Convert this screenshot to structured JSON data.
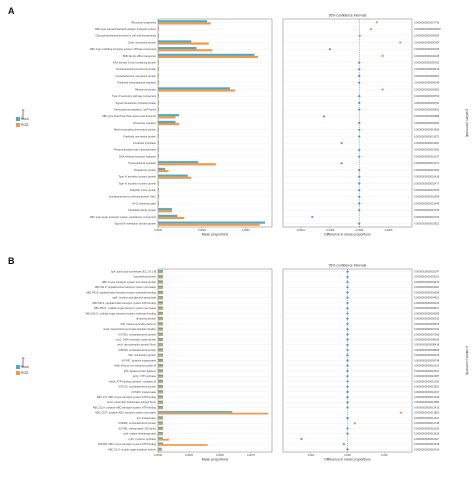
{
  "colors": {
    "Stool": "#4bacc6",
    "RGS": "#f79646",
    "grid": "#e6e6e6",
    "frame": "#555555",
    "dash": "#555555"
  },
  "chart_data": [
    {
      "panel": "A",
      "type": "bar",
      "legend": {
        "title": "Group",
        "items": [
          "Stool",
          "RGS"
        ],
        "placement": "left"
      },
      "categories": [
        "Ribosome biogenesis",
        "ABC-type polysaccharide/O-antigen transport system",
        "Glycosyltransferase involved in cell wall biosynthesis",
        "Outer membrane protein",
        "ABC-type multidrug transport system, ATPase component",
        "RND family efflux transporter",
        "PAS domain S-box-containing protein",
        "Uncharacterized conserved protein",
        "Uncharacterized membrane protein",
        "Predicted transcriptional regulator",
        "Ribosomal protein",
        "Type IV secretory pathway component",
        "Signal transduction histidine kinase",
        "Transcriptional regulator, LysR family",
        "ABC-type branched-chain amino acid transport",
        "Response regulator",
        "Methyl-accepting chemotaxis protein",
        "Predicted membrane protein",
        "Predicted hydrolase",
        "Phosphoenolpyruvate carboxykinase",
        "DNA-binding response regulator",
        "Transcriptional regulator",
        "Periplasmic protein",
        "Type VI secretion system protein",
        "Type IV secretion system protein",
        "Flagellar motor protein",
        "Uncharacterized conserved protein YhbC",
        "Fe-S oxidoreductase",
        "Peptidase family protein",
        "ABC-type sugar transport system, periplasmic component",
        "Sigma-54 interaction domain protein"
      ],
      "series": [
        {
          "name": "Stool",
          "values": [
            0.0028,
            5e-05,
            5e-05,
            0.0019,
            0.0022,
            0.0055,
            5e-05,
            5e-05,
            5e-05,
            5e-05,
            0.0041,
            5e-05,
            5e-05,
            5e-05,
            0.0012,
            0.001,
            5e-05,
            5e-05,
            5e-05,
            5e-05,
            5e-05,
            0.0023,
            0.0004,
            0.0017,
            5e-05,
            5e-05,
            5e-05,
            5e-05,
            0.0008,
            0.0011,
            0.0061
          ]
        },
        {
          "name": "RGS",
          "values": [
            0.003,
            5e-05,
            5e-05,
            0.0029,
            0.0031,
            0.0057,
            5e-05,
            5e-05,
            5e-05,
            5e-05,
            0.0044,
            5e-05,
            5e-05,
            5e-05,
            0.001,
            0.0012,
            5e-05,
            5e-05,
            5e-05,
            5e-05,
            5e-05,
            0.0033,
            0.0006,
            0.0019,
            5e-05,
            5e-05,
            5e-05,
            5e-05,
            0.0008,
            0.0015,
            0.0058
          ]
        }
      ],
      "xlabel": "Mean proportions",
      "xticks": [
        "0.0000",
        "0.0025",
        "0.0050"
      ],
      "xlim": [
        0,
        0.0065
      ],
      "ci": {
        "title": "95% confidence intervals",
        "xlabel": "Difference in mean proportions",
        "xticks": [
          "-0.0010",
          "-0.0005",
          "0.0000",
          "0.0005"
        ],
        "xlim": [
          -0.0013,
          0.0009
        ],
        "diffs": [
          0.0003,
          0.0002,
          1e-05,
          0.0007,
          -0.0005,
          0.0004,
          0.0,
          0.0,
          0.0,
          0.0,
          0.0004,
          0.0,
          0.0,
          0.0,
          -0.0006,
          0.0,
          0.0,
          0.0,
          -0.0003,
          0.0,
          0.0,
          -0.0003,
          0.0,
          0.0,
          0.0,
          0.0,
          0.0,
          0.0,
          0.0,
          -0.0008,
          0.0
        ],
        "colors": [
          "RGS",
          "RGS",
          "RGS",
          "RGS",
          "Stool",
          "RGS",
          "Stool",
          "Stool",
          "Stool",
          "Stool",
          "RGS",
          "Stool",
          "Stool",
          "Stool",
          "Stool",
          "Stool",
          "Stool",
          "Stool",
          "Stool",
          "Stool",
          "Stool",
          "Stool",
          "Stool",
          "Stool",
          "Stool",
          "Stool",
          "Stool",
          "Stool",
          "Stool",
          "Stool",
          "Stool"
        ]
      },
      "pvalues": [
        "0.0000000000007742",
        "0.00000000000000000",
        "0.0000000000000003",
        "0.0000000000000064",
        "0.0000000000000186",
        "0.0000000000000225",
        "0.0000000000000360",
        "0.0000000000000432",
        "0.0000000000000501",
        "0.0000000000000549",
        "0.0000000000000662",
        "0.0000000000000703",
        "0.0000000000000781",
        "0.0000000000000832",
        "0.0000000000000888",
        "0.0000000000000932",
        "0.0000000000001006",
        "0.0000000000001072",
        "0.0000000000001118",
        "0.0000000000001169",
        "0.0000000000001247",
        "0.0000000000001317",
        "0.0000000000001362",
        "0.0000000000001418",
        "0.0000000000001477",
        "0.0000000000001535",
        "0.0000000000001594",
        "0.0000000000001648",
        "0.0000000000001705",
        "0.0000000000001764",
        "0.0000000000001822"
      ],
      "pvalue_title": "p-values (corrected)"
    },
    {
      "panel": "B",
      "type": "bar",
      "legend": {
        "title": "Group",
        "items": [
          "Stool",
          "RGS"
        ],
        "placement": "left"
      },
      "categories": [
        "lipA; lipoic acid synthetase [EC:2.8.1.8]",
        "hypothetical protein",
        "ABC-2 type transport system permease protein",
        "ABC.PE.P; peptide/nickel transport system permease",
        "ABC.PE.A; peptide/nickel transport system substrate-binding",
        "tagF; teichoic acid glycerol-phosphate",
        "ABC.PE.S; peptide/nickel transport system ATP-binding",
        "ABC.MS.P; multiple sugar transport system permease",
        "ABC.MS.S; multiple sugar transport system substrate-binding",
        "ribosomal protein",
        "rbfA; ribosome-binding factor A",
        "nusA; transcription termination/antitermination",
        "K07090; uncharacterized protein",
        "mutL; DNA mismatch repair protein",
        "recA; recombination protein RecA",
        "K06915; uncharacterized protein",
        "ftsZ; cell division protein",
        "K07497; putative transposase",
        "feoB; ferrous iron transport protein B",
        "lplA; lipoate-protein ligase A",
        "pyrG; CTP synthase",
        "msbA; ATP-binding cassette, subfamily B",
        "K07133; uncharacterized protein",
        "K07484; transposase",
        "ABC-2.P; ABC-2 type transport system ATP-binding",
        "secA; preprotein translocase subunit SecA",
        "ABC.CD.A; putative ABC transport system ATP-binding",
        "ABC.CD.P; putative ABC transport system permease",
        "tnp; transposase",
        "K09384; uncharacterized protein",
        "K07481; transposase, IS5 family",
        "mdh; malate dehydrogenase",
        "cysK; cysteine synthase",
        "K01990; ABC-2 type transport system ATP-binding",
        "ABC.SS.S; simple sugar transport system"
      ],
      "series": [
        {
          "name": "Stool",
          "values": [
            0.0004,
            0.0004,
            0.0004,
            0.0004,
            0.0004,
            0.0004,
            0.0004,
            0.0004,
            0.0004,
            0.0004,
            0.0004,
            0.0004,
            0.0004,
            0.0004,
            0.0004,
            0.0004,
            0.0004,
            0.0004,
            0.0004,
            0.0004,
            0.0004,
            0.0004,
            0.0004,
            0.0004,
            0.0004,
            0.0004,
            0.0004,
            0.006,
            0.0004,
            0.0004,
            0.0004,
            0.0004,
            0.0004,
            0.0004,
            0.0003
          ]
        },
        {
          "name": "RGS",
          "values": [
            0.0004,
            0.0004,
            0.0004,
            0.0004,
            0.0004,
            0.0004,
            0.0004,
            0.0004,
            0.0004,
            0.0004,
            0.0004,
            0.0004,
            0.0004,
            0.0004,
            0.0004,
            0.0004,
            0.0004,
            0.0004,
            0.0004,
            0.0004,
            0.0004,
            0.0004,
            0.0004,
            0.0004,
            0.0004,
            0.0004,
            0.0004,
            0.0089,
            0.0004,
            0.0004,
            0.0004,
            0.0004,
            0.0009,
            0.004,
            0.0003
          ]
        }
      ],
      "xlabel": "Mean proportions",
      "xticks": [
        "0.0000",
        "0.0025",
        "0.0050",
        "0.0075"
      ],
      "xlim": [
        0,
        0.0092
      ],
      "ci": {
        "title": "95% confidence intervals",
        "xlabel": "Difference in mean proportions",
        "xticks": [
          "-0.002",
          "0.000",
          "0.002"
        ],
        "xlim": [
          -0.0035,
          0.0035
        ],
        "diffs": [
          0.0,
          0.0,
          0.0,
          0.0,
          0.0,
          0.0,
          0.0,
          0.0,
          0.0,
          0.0,
          0.0,
          0.0,
          0.0,
          0.0,
          0.0,
          0.0,
          0.0,
          0.0,
          0.0,
          0.0,
          0.0,
          0.0,
          0.0,
          0.0,
          0.0,
          0.0,
          0.0,
          0.0029,
          0.0,
          0.0004,
          0.0,
          0.0,
          -0.0025,
          -0.0002,
          0.0
        ],
        "colors": [
          "Stool",
          "Stool",
          "Stool",
          "Stool",
          "Stool",
          "Stool",
          "Stool",
          "Stool",
          "Stool",
          "Stool",
          "Stool",
          "Stool",
          "Stool",
          "Stool",
          "Stool",
          "Stool",
          "Stool",
          "Stool",
          "Stool",
          "Stool",
          "Stool",
          "Stool",
          "Stool",
          "Stool",
          "Stool",
          "Stool",
          "Stool",
          "RGS",
          "Stool",
          "RGS",
          "Stool",
          "Stool",
          "Stool",
          "Stool",
          "Stool"
        ]
      },
      "pvalues": [
        "0.0000000000002247",
        "0.0000000000003119",
        "0.0000000000003476",
        "0.0000000000004001",
        "0.0000000000004358",
        "0.0000000000004821",
        "0.0000000000005102",
        "0.0000000000005647",
        "0.0000000000006009",
        "0.0000000000006332",
        "0.0000000000006875",
        "0.0000000000007192",
        "0.0000000000007566",
        "0.0000000000008036",
        "0.0000000000008418",
        "0.0000000000008899",
        "0.0000000000009215",
        "0.0000000000009748",
        "0.0000000000010104",
        "0.0000000000010511",
        "0.0000000000010987",
        "0.0000000000011356",
        "0.0000000000011802",
        "0.0000000000012197",
        "0.0000000000012639",
        "0.0000000000013083",
        "0.0000000000013415",
        "0.0000000000013861",
        "0.0000000000014327",
        "0.0000000000014738",
        "0.0000000000015190",
        "0.0000000000015626",
        "0.0000000000016027",
        "0.0000000000016468",
        "0.0000000000016914"
      ],
      "pvalue_title": "p-values (corrected)"
    }
  ]
}
